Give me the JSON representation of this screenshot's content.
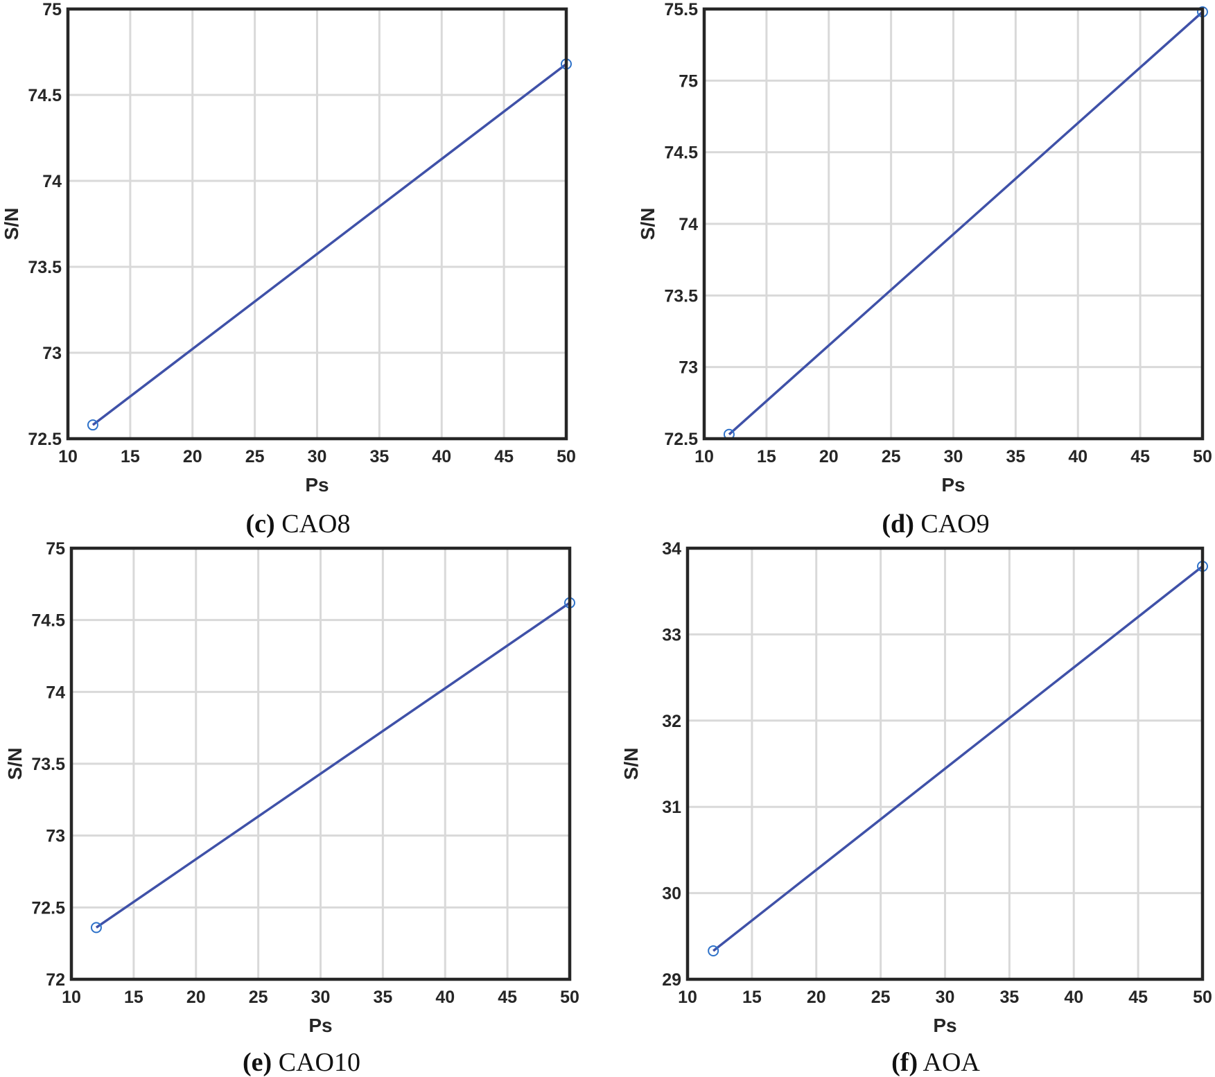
{
  "figure": {
    "colors": {
      "line": "#3f51a8",
      "marker": "#2e72c9",
      "grid": "#d9d9d9",
      "axes": "#262626"
    }
  },
  "chart_data": [
    {
      "id": "c",
      "type": "line",
      "caption_letter": "(c)",
      "caption_text": " CAO8",
      "xlabel": "Ps",
      "ylabel": "S/N",
      "xlim": [
        10,
        50
      ],
      "ylim": [
        72.5,
        75
      ],
      "xticks": [
        10,
        15,
        20,
        25,
        30,
        35,
        40,
        45,
        50
      ],
      "yticks": [
        72.5,
        73,
        73.5,
        74,
        74.5,
        75
      ],
      "x": [
        12,
        50
      ],
      "y": [
        72.58,
        74.68
      ]
    },
    {
      "id": "d",
      "type": "line",
      "caption_letter": "(d)",
      "caption_text": " CAO9",
      "xlabel": "Ps",
      "ylabel": "S/N",
      "xlim": [
        10,
        50
      ],
      "ylim": [
        72.5,
        75.5
      ],
      "xticks": [
        10,
        15,
        20,
        25,
        30,
        35,
        40,
        45,
        50
      ],
      "yticks": [
        72.5,
        73,
        73.5,
        74,
        74.5,
        75,
        75.5
      ],
      "x": [
        12,
        50
      ],
      "y": [
        72.53,
        75.48
      ]
    },
    {
      "id": "e",
      "type": "line",
      "caption_letter": "(e)",
      "caption_text": " CAO10",
      "xlabel": "Ps",
      "ylabel": "S/N",
      "xlim": [
        10,
        50
      ],
      "ylim": [
        72,
        75
      ],
      "xticks": [
        10,
        15,
        20,
        25,
        30,
        35,
        40,
        45,
        50
      ],
      "yticks": [
        72,
        72.5,
        73,
        73.5,
        74,
        74.5,
        75
      ],
      "x": [
        12,
        50
      ],
      "y": [
        72.36,
        74.62
      ]
    },
    {
      "id": "f",
      "type": "line",
      "caption_letter": "(f)",
      "caption_text": " AOA",
      "xlabel": "Ps",
      "ylabel": "S/N",
      "xlim": [
        10,
        50
      ],
      "ylim": [
        29,
        34
      ],
      "xticks": [
        10,
        15,
        20,
        25,
        30,
        35,
        40,
        45,
        50
      ],
      "yticks": [
        29,
        30,
        31,
        32,
        33,
        34
      ],
      "x": [
        12,
        50
      ],
      "y": [
        29.33,
        33.79
      ]
    }
  ]
}
